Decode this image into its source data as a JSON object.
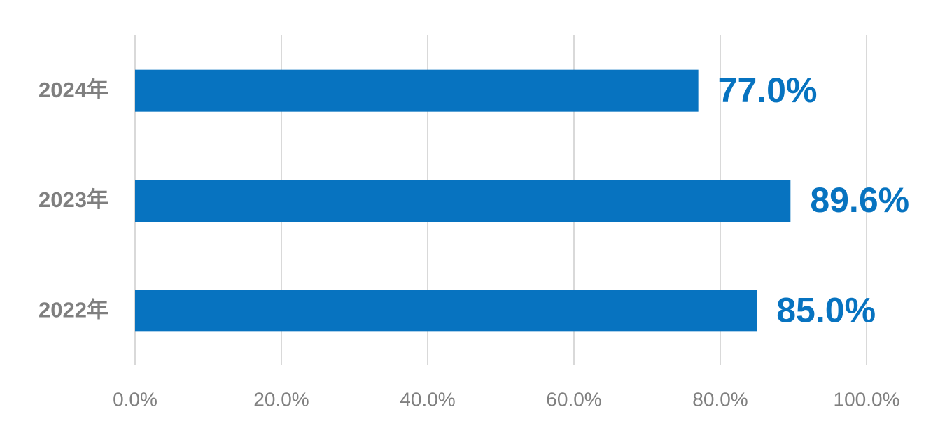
{
  "chart_data": {
    "type": "bar",
    "orientation": "horizontal",
    "categories": [
      "2024年",
      "2023年",
      "2022年"
    ],
    "values": [
      77.0,
      89.6,
      85.0
    ],
    "value_labels": [
      "77.0%",
      "89.6%",
      "85.0%"
    ],
    "color": "#0773c0",
    "xlim": [
      0,
      100
    ],
    "xticks": [
      {
        "value": 0,
        "label": "0.0%"
      },
      {
        "value": 20,
        "label": "20.0%"
      },
      {
        "value": 40,
        "label": "40.0%"
      },
      {
        "value": 60,
        "label": "60.0%"
      },
      {
        "value": 80,
        "label": "80.0%"
      },
      {
        "value": 100,
        "label": "100.0%"
      }
    ],
    "grid": true
  }
}
